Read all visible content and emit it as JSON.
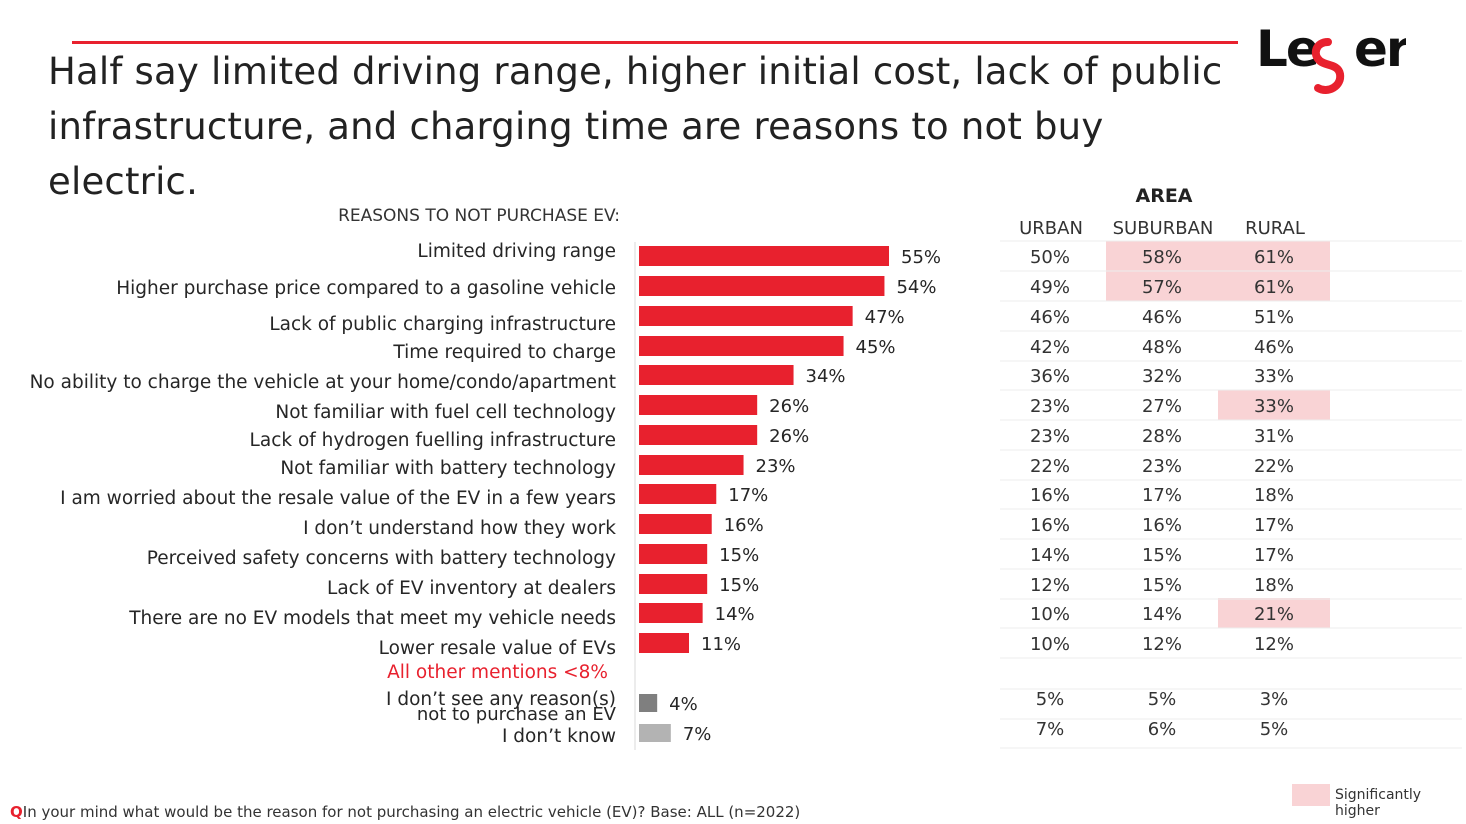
{
  "title": "Half say limited driving range, higher initial cost, lack of public infrastructure, and charging time are reasons to not buy electric.",
  "brand": "Leger",
  "colors": {
    "accent": "#e8212e",
    "bar_main": "#e8212e",
    "bar_dont_see": "#7f7f7f",
    "bar_dont_know": "#b3b3b3",
    "sig_highlight": "#f9d3d5"
  },
  "chart_data": {
    "type": "bar",
    "orientation": "horizontal",
    "subtitle": "REASONS TO NOT PURCHASE EV:",
    "categories": [
      "Limited driving range",
      "Higher purchase price compared  to a gasoline vehicle",
      "Lack of public charging  infrastructure",
      "Time required to charge",
      "No ability to charge the vehicle at your home/condo/apartment",
      "Not familiar with fuel cell technology",
      "Lack of hydrogen  fuelling infrastructure",
      "Not familiar with battery technology",
      "I am worried about  the resale value of the EV in a few years",
      "I don’t understand  how they work",
      "Perceived safety concerns with battery technology",
      "Lack of EV inventory at dealers",
      "There are no EV models that meet my vehicle needs",
      "Lower resale value of EVs"
    ],
    "values": [
      55,
      54,
      47,
      45,
      34,
      26,
      26,
      23,
      17,
      16,
      15,
      15,
      14,
      11
    ],
    "value_labels": [
      "55%",
      "54%",
      "47%",
      "45%",
      "34%",
      "26%",
      "26%",
      "23%",
      "17%",
      "16%",
      "15%",
      "15%",
      "14%",
      "11%"
    ],
    "other_mentions_label": "All other mentions <8%",
    "extra_rows": [
      {
        "label_line1": "I don’t  see any reason(s)",
        "label_line2": "not to purchase  an EV",
        "value": 4,
        "value_label": "4%",
        "area": [
          "5%",
          "5%",
          "3%"
        ]
      },
      {
        "label_line1": "I don’t  know",
        "label_line2": "",
        "value": 7,
        "value_label": "7%",
        "area": [
          "7%",
          "6%",
          "5%"
        ]
      }
    ],
    "xlim": [
      0,
      100
    ],
    "area_table": {
      "header": "AREA",
      "columns": [
        "URBAN",
        "SUBURBAN",
        "RURAL"
      ],
      "rows": [
        [
          "50%",
          "58%",
          "61%"
        ],
        [
          "49%",
          "57%",
          "61%"
        ],
        [
          "46%",
          "46%",
          "51%"
        ],
        [
          "42%",
          "48%",
          "46%"
        ],
        [
          "36%",
          "32%",
          "33%"
        ],
        [
          "23%",
          "27%",
          "33%"
        ],
        [
          "23%",
          "28%",
          "31%"
        ],
        [
          "22%",
          "23%",
          "22%"
        ],
        [
          "16%",
          "17%",
          "18%"
        ],
        [
          "16%",
          "16%",
          "17%"
        ],
        [
          "14%",
          "15%",
          "17%"
        ],
        [
          "12%",
          "15%",
          "18%"
        ],
        [
          "10%",
          "14%",
          "21%"
        ],
        [
          "10%",
          "12%",
          "12%"
        ]
      ],
      "significant": [
        [
          0,
          1
        ],
        [
          0,
          2
        ],
        [
          1,
          1
        ],
        [
          1,
          2
        ],
        [
          5,
          2
        ],
        [
          12,
          2
        ]
      ]
    }
  },
  "legend": {
    "label": "Significantly higher"
  },
  "footnote": {
    "q_marker": "Q",
    "text": "In your mind what would be the reason for not purchasing  an electric vehicle (EV)? Base: ALL (n=2022)"
  }
}
